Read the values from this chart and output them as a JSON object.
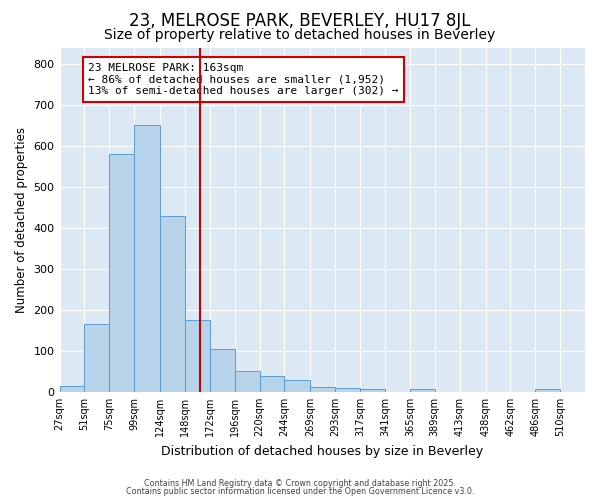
{
  "title1": "23, MELROSE PARK, BEVERLEY, HU17 8JL",
  "title2": "Size of property relative to detached houses in Beverley",
  "xlabel": "Distribution of detached houses by size in Beverley",
  "ylabel": "Number of detached properties",
  "bar_left_edges": [
    27,
    51,
    75,
    99,
    124,
    148,
    172,
    196,
    220,
    244,
    269,
    293,
    317,
    341,
    365,
    389,
    413,
    438,
    462,
    486
  ],
  "bar_widths": [
    24,
    24,
    24,
    25,
    24,
    24,
    24,
    24,
    24,
    25,
    24,
    24,
    24,
    24,
    24,
    24,
    25,
    24,
    24,
    24
  ],
  "bar_heights": [
    15,
    165,
    580,
    650,
    430,
    175,
    105,
    50,
    40,
    30,
    12,
    10,
    8,
    0,
    8,
    0,
    0,
    0,
    0,
    6
  ],
  "bar_color": "#b8d4ea",
  "bar_edgecolor": "#5b9bd5",
  "ylim": [
    0,
    840
  ],
  "xlim": [
    27,
    534
  ],
  "yticks": [
    0,
    100,
    200,
    300,
    400,
    500,
    600,
    700,
    800
  ],
  "xtick_labels": [
    "27sqm",
    "51sqm",
    "75sqm",
    "99sqm",
    "124sqm",
    "148sqm",
    "172sqm",
    "196sqm",
    "220sqm",
    "244sqm",
    "269sqm",
    "293sqm",
    "317sqm",
    "341sqm",
    "365sqm",
    "389sqm",
    "413sqm",
    "438sqm",
    "462sqm",
    "486sqm",
    "510sqm"
  ],
  "xtick_positions": [
    27,
    51,
    75,
    99,
    124,
    148,
    172,
    196,
    220,
    244,
    269,
    293,
    317,
    341,
    365,
    389,
    413,
    438,
    462,
    486,
    510
  ],
  "vline_x": 163,
  "vline_color": "#cc0000",
  "annotation_text": "23 MELROSE PARK: 163sqm\n← 86% of detached houses are smaller (1,952)\n13% of semi-detached houses are larger (302) →",
  "annotation_box_color": "#ffffff",
  "annotation_box_edgecolor": "#cc0000",
  "bg_color": "#dce9f5",
  "title1_fontsize": 12,
  "title2_fontsize": 10,
  "footer1": "Contains HM Land Registry data © Crown copyright and database right 2025.",
  "footer2": "Contains public sector information licensed under the Open Government Licence v3.0."
}
